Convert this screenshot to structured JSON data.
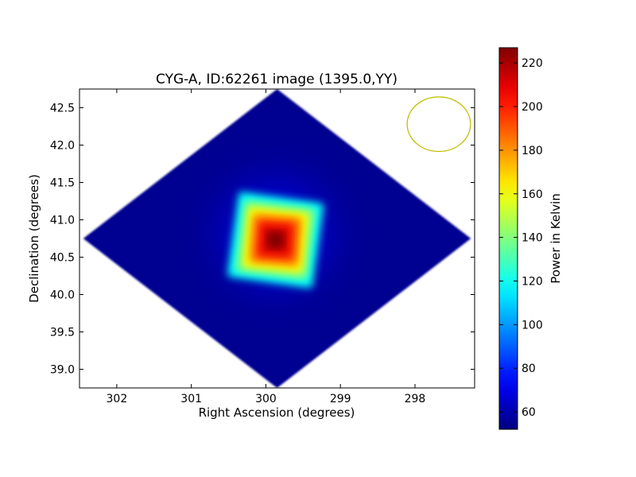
{
  "chart_data": {
    "type": "heatmap",
    "title": "CYG-A, ID:62261 image (1395.0,YY)",
    "xlabel": "Right Ascension (degrees)",
    "ylabel": "Declination (degrees)",
    "xlim": [
      302.5,
      297.2
    ],
    "ylim": [
      38.75,
      42.75
    ],
    "x_ticks": [
      302,
      301,
      300,
      299,
      298
    ],
    "x_tick_labels": [
      "302",
      "301",
      "300",
      "299",
      "298"
    ],
    "y_ticks": [
      39.0,
      39.5,
      40.0,
      40.5,
      41.0,
      41.5,
      42.0,
      42.5
    ],
    "y_tick_labels": [
      "39.0",
      "39.5",
      "40.0",
      "40.5",
      "41.0",
      "41.5",
      "42.0",
      "42.5"
    ],
    "colormap": "jet",
    "colorbar": {
      "label": "Power in Kelvin",
      "range": [
        52,
        227
      ],
      "ticks": [
        60,
        80,
        100,
        120,
        140,
        160,
        180,
        200,
        220
      ],
      "tick_labels": [
        "60",
        "80",
        "100",
        "120",
        "140",
        "160",
        "180",
        "200",
        "220"
      ]
    },
    "field": {
      "center_ra": 299.85,
      "center_dec": 40.75,
      "half_width_ra": 2.6,
      "half_height_dec": 2.0,
      "background_value": 55
    },
    "source": {
      "ra": 299.87,
      "dec": 40.73,
      "peak_value": 227,
      "halo_value": 62
    },
    "beam": {
      "ra": 297.68,
      "dec": 42.28,
      "diameter_ra": 0.85,
      "diameter_dec": 0.73,
      "color": "#bfbf00"
    }
  }
}
